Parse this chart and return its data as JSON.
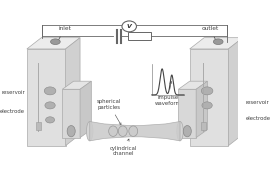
{
  "bg_color": "#ffffff",
  "wire_color": "#666666",
  "box_front": "#e0e0e0",
  "box_top": "#ececec",
  "box_side": "#d0d0d0",
  "box_edge": "#aaaaaa",
  "small_box_front": "#d8d8d8",
  "small_box_top": "#e5e5e5",
  "small_box_side": "#c8c8c8",
  "channel_fill": "#d5d5d5",
  "channel_edge": "#aaaaaa",
  "hole_fill": "#b0b0b0",
  "hole_edge": "#888888",
  "electrode_color": "#c0c0c0",
  "wave_color": "#555555",
  "text_color": "#444444",
  "labels": {
    "inlet": "inlet",
    "outlet": "outlet",
    "reservoir_left": "reservoir",
    "electrode_left": "electrode",
    "reservoir_right": "reservoir",
    "electrode_right": "electrode",
    "spherical": "spherical\nparticles",
    "impulse": "impulse\nwaveform",
    "cylindrical": "cylindrical\nchannel"
  }
}
